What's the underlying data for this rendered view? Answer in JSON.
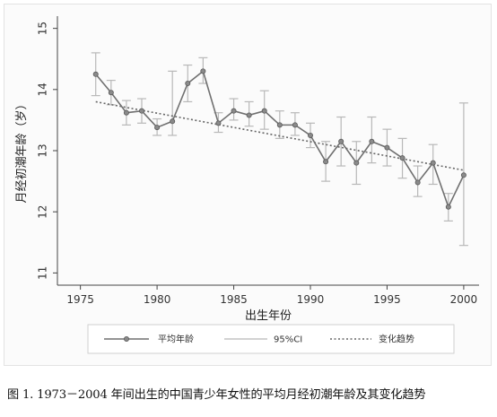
{
  "chart_data": {
    "type": "line",
    "xlabel": "出生年份",
    "ylabel": "月经初潮年龄（岁）",
    "xlim": [
      1973.5,
      2001
    ],
    "ylim": [
      10.8,
      15.2
    ],
    "xticks": [
      1975,
      1980,
      1985,
      1990,
      1995,
      2000
    ],
    "yticks": [
      11,
      12,
      13,
      14,
      15
    ],
    "grid": false,
    "legend_position": "bottom",
    "legend": [
      "平均年龄",
      "95%CI",
      "变化趋势"
    ],
    "series": [
      {
        "name": "平均年龄",
        "x": [
          1976,
          1977,
          1978,
          1979,
          1980,
          1981,
          1982,
          1983,
          1984,
          1985,
          1986,
          1987,
          1988,
          1989,
          1990,
          1991,
          1992,
          1993,
          1994,
          1995,
          1996,
          1997,
          1998,
          1999,
          2000
        ],
        "y": [
          14.25,
          13.95,
          13.62,
          13.65,
          13.38,
          13.48,
          14.1,
          14.3,
          13.45,
          13.65,
          13.58,
          13.65,
          13.42,
          13.42,
          13.25,
          12.82,
          13.15,
          12.8,
          13.15,
          13.05,
          12.88,
          12.48,
          12.8,
          12.08,
          12.6
        ]
      },
      {
        "name": "95%CI",
        "lower": [
          13.9,
          13.75,
          13.42,
          13.45,
          13.25,
          13.25,
          13.8,
          14.1,
          13.3,
          13.5,
          13.4,
          13.35,
          13.2,
          13.25,
          13.05,
          12.5,
          12.75,
          12.45,
          12.8,
          12.75,
          12.55,
          12.25,
          12.45,
          11.85,
          11.45
        ],
        "upper": [
          14.6,
          14.15,
          13.82,
          13.85,
          13.52,
          14.3,
          14.4,
          14.52,
          13.62,
          13.85,
          13.8,
          13.98,
          13.65,
          13.62,
          13.45,
          13.15,
          13.55,
          13.15,
          13.55,
          13.35,
          13.2,
          12.75,
          13.1,
          12.3,
          13.78
        ]
      },
      {
        "name": "变化趋势",
        "x": [
          1976,
          2000
        ],
        "y": [
          13.8,
          12.68
        ]
      }
    ]
  },
  "caption": "图 1. 1973－2004 年间出生的中国青少年女性的平均月经初潮年龄及其变化趋势",
  "colors": {
    "mean_line": "#707070",
    "marker_fill": "#8a8a8a",
    "ci_bars": "#b8b8b8",
    "trend": "#666666",
    "axis": "#444444"
  }
}
